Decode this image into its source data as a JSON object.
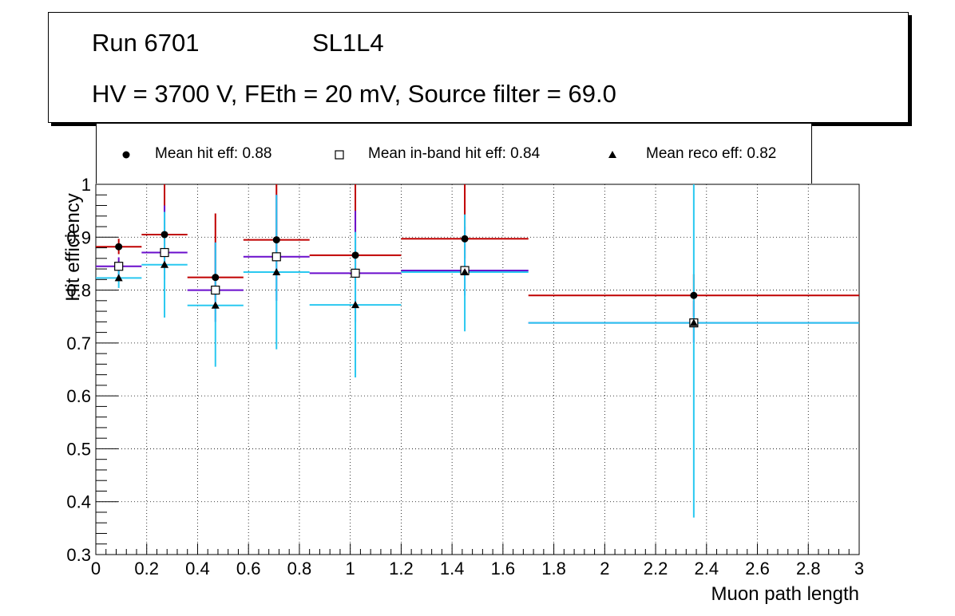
{
  "title": {
    "run": "Run 6701",
    "layer": "SL1L4",
    "conditions": "HV = 3700 V, FEth = 20 mV, Source filter = 69.0"
  },
  "legend": [
    {
      "marker": "circle",
      "label": "Mean hit  eff: 0.88"
    },
    {
      "marker": "open-square",
      "label": "Mean in-band hit eff: 0.84"
    },
    {
      "marker": "triangle",
      "label": "Mean reco eff: 0.82"
    }
  ],
  "chart_data": {
    "type": "scatter",
    "xlabel": "Muon path length",
    "ylabel": "Hit efficiency",
    "xlim": [
      0,
      3
    ],
    "ylim": [
      0.3,
      1
    ],
    "xticks": [
      "0",
      "0.2",
      "0.4",
      "0.6",
      "0.8",
      "1",
      "1.2",
      "1.4",
      "1.6",
      "1.8",
      "2",
      "2.2",
      "2.4",
      "2.6",
      "2.8",
      "3"
    ],
    "yticks": [
      "0.3",
      "0.4",
      "0.5",
      "0.6",
      "0.7",
      "0.8",
      "0.9",
      "1"
    ],
    "grid": true,
    "series": [
      {
        "name": "Mean hit  eff: 0.88",
        "marker": "circle",
        "color": "#c00000",
        "points": [
          {
            "x": 0.09,
            "xlo": 0.0,
            "xhi": 0.18,
            "y": 0.882,
            "ylo": 0.868,
            "yhi": 0.897
          },
          {
            "x": 0.27,
            "xlo": 0.18,
            "xhi": 0.36,
            "y": 0.905,
            "ylo": 0.86,
            "yhi": 1.0
          },
          {
            "x": 0.47,
            "xlo": 0.36,
            "xhi": 0.58,
            "y": 0.824,
            "ylo": 0.78,
            "yhi": 0.945
          },
          {
            "x": 0.71,
            "xlo": 0.58,
            "xhi": 0.84,
            "y": 0.895,
            "ylo": 0.86,
            "yhi": 1.0
          },
          {
            "x": 1.02,
            "xlo": 0.84,
            "xhi": 1.2,
            "y": 0.866,
            "ylo": 0.83,
            "yhi": 1.0
          },
          {
            "x": 1.45,
            "xlo": 1.2,
            "xhi": 1.7,
            "y": 0.897,
            "ylo": 0.86,
            "yhi": 1.0
          },
          {
            "x": 2.35,
            "xlo": 1.7,
            "xhi": 3.0,
            "y": 0.79,
            "ylo": 0.75,
            "yhi": 0.83
          }
        ]
      },
      {
        "name": "Mean in-band hit eff: 0.84",
        "marker": "open-square",
        "color": "#6a0dcc",
        "points": [
          {
            "x": 0.09,
            "xlo": 0.0,
            "xhi": 0.18,
            "y": 0.845,
            "ylo": 0.828,
            "yhi": 0.862
          },
          {
            "x": 0.27,
            "xlo": 0.18,
            "xhi": 0.36,
            "y": 0.871,
            "ylo": 0.82,
            "yhi": 0.96
          },
          {
            "x": 0.47,
            "xlo": 0.36,
            "xhi": 0.58,
            "y": 0.8,
            "ylo": 0.74,
            "yhi": 0.89
          },
          {
            "x": 0.71,
            "xlo": 0.58,
            "xhi": 0.84,
            "y": 0.863,
            "ylo": 0.78,
            "yhi": 0.98
          },
          {
            "x": 1.02,
            "xlo": 0.84,
            "xhi": 1.2,
            "y": 0.832,
            "ylo": 0.74,
            "yhi": 0.95
          },
          {
            "x": 1.45,
            "xlo": 1.2,
            "xhi": 1.7,
            "y": 0.837,
            "ylo": 0.79,
            "yhi": 0.92
          },
          {
            "x": 2.35,
            "xlo": 1.7,
            "xhi": 3.0,
            "y": 0.738,
            "ylo": 0.7,
            "yhi": 0.78
          }
        ]
      },
      {
        "name": "Mean reco eff: 0.82",
        "marker": "triangle",
        "color": "#2ac8f0",
        "points": [
          {
            "x": 0.09,
            "xlo": 0.0,
            "xhi": 0.18,
            "y": 0.823,
            "ylo": 0.804,
            "yhi": 0.843
          },
          {
            "x": 0.27,
            "xlo": 0.18,
            "xhi": 0.36,
            "y": 0.848,
            "ylo": 0.748,
            "yhi": 0.948
          },
          {
            "x": 0.47,
            "xlo": 0.36,
            "xhi": 0.58,
            "y": 0.771,
            "ylo": 0.655,
            "yhi": 0.89
          },
          {
            "x": 0.71,
            "xlo": 0.58,
            "xhi": 0.84,
            "y": 0.834,
            "ylo": 0.688,
            "yhi": 0.98
          },
          {
            "x": 1.02,
            "xlo": 0.84,
            "xhi": 1.2,
            "y": 0.772,
            "ylo": 0.635,
            "yhi": 0.91
          },
          {
            "x": 1.45,
            "xlo": 1.2,
            "xhi": 1.7,
            "y": 0.834,
            "ylo": 0.722,
            "yhi": 0.943
          },
          {
            "x": 2.35,
            "xlo": 1.7,
            "xhi": 3.0,
            "y": 0.738,
            "ylo": 0.37,
            "yhi": 1.0
          }
        ]
      }
    ]
  }
}
